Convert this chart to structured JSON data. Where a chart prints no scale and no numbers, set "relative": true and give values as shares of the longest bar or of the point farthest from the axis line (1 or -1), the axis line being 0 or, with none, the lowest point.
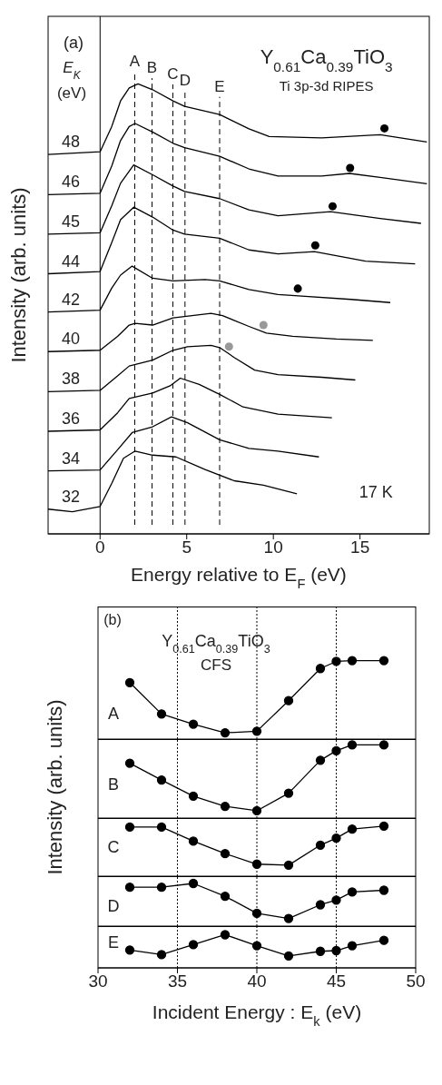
{
  "chart_data": [
    {
      "type": "line",
      "title": "Y$_{0.61}$Ca$_{0.39}$TiO$_{3}$",
      "subtitle": "Ti 3p-3d RIPES",
      "xlabel": "Energy relative to E$_{F}$ (eV)",
      "ylabel": "Intensity (arb. units)",
      "legend_title": "E$_{K}$ (eV)",
      "annotations": [
        "(a)",
        "17 K"
      ],
      "relative": true,
      "xlim": [
        -3,
        19
      ],
      "xticks": [
        0,
        5,
        10,
        15
      ],
      "ref_lines": [
        {
          "axis": "x",
          "value": 0,
          "label": null,
          "line_style": "solid",
          "color": "#000000"
        },
        {
          "axis": "x",
          "value": 2.0,
          "label": "A",
          "line_style": "dashed",
          "color": "#000000"
        },
        {
          "axis": "x",
          "value": 3.0,
          "label": "B",
          "line_style": "dashed",
          "color": "#000000"
        },
        {
          "axis": "x",
          "value": 4.2,
          "label": "C",
          "line_style": "dashed",
          "color": "#000000"
        },
        {
          "axis": "x",
          "value": 4.9,
          "label": "D",
          "line_style": "dashed",
          "color": "#000000"
        },
        {
          "axis": "x",
          "value": 6.9,
          "label": "E",
          "line_style": "dashed",
          "color": "#000000"
        }
      ],
      "series": [
        {
          "name": "48",
          "color": "#000000",
          "x": [
            -3,
            0,
            0.67,
            1.18,
            1.68,
            2.19,
            3.03,
            4.21,
            4.88,
            6.9,
            8.59,
            9.76,
            12.79,
            16.16,
            18.86
          ],
          "values": [
            0.843,
            0.849,
            0.905,
            0.962,
            0.991,
            1.0,
            0.987,
            0.962,
            0.95,
            0.932,
            0.9,
            0.883,
            0.88,
            0.887,
            0.871
          ]
        },
        {
          "name": "46",
          "color": "#000000",
          "x": [
            -3,
            0,
            0.67,
            1.18,
            1.68,
            2.02,
            3.03,
            4.21,
            4.88,
            6.9,
            8.59,
            10.27,
            12.79,
            14.39,
            16.16,
            18.86
          ],
          "values": [
            0.754,
            0.757,
            0.817,
            0.874,
            0.905,
            0.912,
            0.893,
            0.868,
            0.858,
            0.839,
            0.811,
            0.795,
            0.795,
            0.801,
            0.792,
            0.778
          ]
        },
        {
          "name": "45",
          "color": "#000000",
          "x": [
            -3,
            0,
            0.67,
            1.18,
            1.94,
            3.03,
            4.21,
            4.88,
            6.9,
            8.59,
            10.27,
            13.3,
            16.16,
            18.52
          ],
          "values": [
            0.666,
            0.669,
            0.729,
            0.779,
            0.82,
            0.798,
            0.773,
            0.761,
            0.745,
            0.72,
            0.707,
            0.716,
            0.701,
            0.69
          ]
        },
        {
          "name": "44",
          "color": "#000000",
          "x": [
            -3,
            0,
            0.67,
            1.18,
            1.94,
            3.03,
            4.21,
            4.88,
            6.9,
            8.59,
            10.27,
            12.37,
            15.32,
            18.18
          ],
          "values": [
            0.578,
            0.583,
            0.647,
            0.698,
            0.726,
            0.704,
            0.675,
            0.666,
            0.657,
            0.631,
            0.622,
            0.627,
            0.606,
            0.6
          ]
        },
        {
          "name": "42",
          "color": "#000000",
          "x": [
            -3,
            0,
            0.67,
            1.18,
            1.85,
            3.03,
            4.21,
            6.06,
            6.9,
            8.59,
            10.27,
            11.45,
            14.48,
            16.75
          ],
          "values": [
            0.493,
            0.497,
            0.546,
            0.575,
            0.595,
            0.568,
            0.562,
            0.565,
            0.562,
            0.543,
            0.532,
            0.529,
            0.521,
            0.514
          ]
        },
        {
          "name": "40",
          "color": "#000000",
          "x": [
            -3,
            0,
            1.01,
            1.68,
            2.02,
            3.03,
            4.21,
            6.4,
            7.07,
            8.59,
            9.6,
            11.11,
            13.64,
            15.74
          ],
          "values": [
            0.405,
            0.408,
            0.439,
            0.464,
            0.468,
            0.464,
            0.48,
            0.49,
            0.485,
            0.461,
            0.446,
            0.439,
            0.433,
            0.43
          ]
        },
        {
          "name": "38",
          "color": "#000000",
          "x": [
            -3,
            0,
            1.01,
            1.68,
            3.03,
            4.21,
            5.05,
            6.4,
            6.9,
            7.74,
            8.92,
            10.27,
            12.79,
            14.73
          ],
          "values": [
            0.316,
            0.319,
            0.351,
            0.373,
            0.386,
            0.408,
            0.416,
            0.419,
            0.414,
            0.392,
            0.364,
            0.354,
            0.348,
            0.342
          ]
        },
        {
          "name": "36",
          "color": "#000000",
          "x": [
            -3,
            0,
            1.01,
            1.68,
            3.03,
            4.04,
            4.63,
            5.72,
            6.9,
            8.25,
            10.27,
            13.38
          ],
          "values": [
            0.228,
            0.231,
            0.269,
            0.301,
            0.313,
            0.329,
            0.346,
            0.332,
            0.31,
            0.282,
            0.266,
            0.258
          ]
        },
        {
          "name": "34",
          "color": "#000000",
          "x": [
            -3,
            0,
            1.01,
            1.85,
            3.03,
            4.12,
            5.05,
            6.9,
            8.59,
            10.27,
            12.63
          ],
          "values": [
            0.14,
            0.142,
            0.187,
            0.225,
            0.238,
            0.26,
            0.247,
            0.209,
            0.19,
            0.184,
            0.171
          ]
        },
        {
          "name": "32",
          "color": "#000000",
          "x": [
            -3,
            -1.6,
            0,
            0.67,
            1.35,
            2.02,
            3.03,
            4.38,
            6.06,
            7.74,
            9.43,
            11.36
          ],
          "values": [
            0.055,
            0.049,
            0.061,
            0.112,
            0.168,
            0.184,
            0.175,
            0.171,
            0.143,
            0.118,
            0.108,
            0.089
          ]
        },
        {
          "type": "scatter",
          "color": "#000000",
          "x": [
            16.41,
            14.43,
            13.42,
            12.42,
            11.41
          ],
          "values": [
            0.901,
            0.813,
            0.728,
            0.641,
            0.545
          ]
        },
        {
          "type": "scatter",
          "color": "#999999",
          "x": [
            9.43,
            7.44
          ],
          "values": [
            0.464,
            0.416
          ]
        }
      ]
    },
    {
      "type": "line",
      "title": "Y$_{0.61}$Ca$_{0.39}$TiO$_{3}$",
      "subtitle": "CFS",
      "ylabel": "Intensity (arb. units)",
      "annotations": [
        "(b)"
      ],
      "relative": true,
      "marker": "circle",
      "tick_labels": false,
      "xlim": [
        30,
        50
      ],
      "xticks": [
        30,
        35,
        40,
        45,
        50
      ],
      "x": [
        32,
        34,
        36,
        38,
        40,
        42,
        44,
        45,
        46,
        48
      ],
      "ref_lines": [
        {
          "axis": "x",
          "value": 35,
          "label": null,
          "line_style": "dotted",
          "color": "#000000"
        },
        {
          "axis": "x",
          "value": 40,
          "label": null,
          "line_style": "dotted",
          "color": "#000000"
        },
        {
          "axis": "x",
          "value": 45,
          "label": null,
          "line_style": "dotted",
          "color": "#000000"
        }
      ],
      "series": [
        {
          "name": "A",
          "color": "#000000",
          "values": [
            0.72,
            0.32,
            0.19,
            0.08,
            0.1,
            0.49,
            0.9,
            0.99,
            1.0,
            1.0
          ]
        }
      ]
    },
    {
      "type": "line",
      "relative": true,
      "marker": "circle",
      "tick_labels": false,
      "xlim": [
        30,
        50
      ],
      "xticks": [
        30,
        35,
        40,
        45,
        50
      ],
      "x": [
        32,
        34,
        36,
        38,
        40,
        42,
        44,
        45,
        46,
        48
      ],
      "ref_lines": [
        {
          "axis": "x",
          "value": 35,
          "label": null,
          "line_style": "dotted",
          "color": "#000000"
        },
        {
          "axis": "x",
          "value": 40,
          "label": null,
          "line_style": "dotted",
          "color": "#000000"
        },
        {
          "axis": "x",
          "value": 45,
          "label": null,
          "line_style": "dotted",
          "color": "#000000"
        }
      ],
      "series": [
        {
          "name": "B",
          "color": "#000000",
          "values": [
            0.75,
            0.52,
            0.3,
            0.16,
            0.1,
            0.34,
            0.79,
            0.92,
            1.0,
            1.0
          ]
        }
      ]
    },
    {
      "type": "line",
      "relative": true,
      "marker": "circle",
      "tick_labels": false,
      "xlim": [
        30,
        50
      ],
      "xticks": [
        30,
        35,
        40,
        45,
        50
      ],
      "x": [
        32,
        34,
        36,
        38,
        40,
        42,
        44,
        45,
        46,
        48
      ],
      "ref_lines": [
        {
          "axis": "x",
          "value": 35,
          "label": null,
          "line_style": "dotted",
          "color": "#000000"
        },
        {
          "axis": "x",
          "value": 40,
          "label": null,
          "line_style": "dotted",
          "color": "#000000"
        },
        {
          "axis": "x",
          "value": 45,
          "label": null,
          "line_style": "dotted",
          "color": "#000000"
        }
      ],
      "series": [
        {
          "name": "C",
          "color": "#000000",
          "values": [
            0.98,
            0.98,
            0.7,
            0.45,
            0.24,
            0.22,
            0.62,
            0.76,
            0.94,
            1.0
          ]
        }
      ]
    },
    {
      "type": "line",
      "relative": true,
      "marker": "circle",
      "tick_labels": false,
      "xlim": [
        30,
        50
      ],
      "xticks": [
        30,
        35,
        40,
        45,
        50
      ],
      "x": [
        32,
        34,
        36,
        38,
        40,
        42,
        44,
        45,
        46,
        48
      ],
      "ref_lines": [
        {
          "axis": "x",
          "value": 35,
          "label": null,
          "line_style": "dotted",
          "color": "#000000"
        },
        {
          "axis": "x",
          "value": 40,
          "label": null,
          "line_style": "dotted",
          "color": "#000000"
        },
        {
          "axis": "x",
          "value": 45,
          "label": null,
          "line_style": "dotted",
          "color": "#000000"
        }
      ],
      "series": [
        {
          "name": "D",
          "color": "#000000",
          "values": [
            0.91,
            0.91,
            1.0,
            0.7,
            0.3,
            0.18,
            0.5,
            0.61,
            0.8,
            0.84
          ]
        }
      ]
    },
    {
      "type": "line",
      "xlabel": "Incident Energy : E$_{k}$ (eV)",
      "relative": true,
      "marker": "circle",
      "tick_labels": "x",
      "xlim": [
        30,
        50
      ],
      "xticks": [
        30,
        35,
        40,
        45,
        50
      ],
      "x": [
        32,
        34,
        36,
        38,
        40,
        42,
        44,
        45,
        46,
        48
      ],
      "ref_lines": [
        {
          "axis": "x",
          "value": 35,
          "label": null,
          "line_style": "dotted",
          "color": "#000000"
        },
        {
          "axis": "x",
          "value": 40,
          "label": null,
          "line_style": "dotted",
          "color": "#000000"
        },
        {
          "axis": "x",
          "value": 45,
          "label": null,
          "line_style": "dotted",
          "color": "#000000"
        }
      ],
      "series": [
        {
          "name": "E",
          "color": "#000000",
          "values": [
            0.54,
            0.4,
            0.7,
            1.0,
            0.67,
            0.36,
            0.5,
            0.52,
            0.67,
            0.83
          ]
        }
      ]
    }
  ]
}
